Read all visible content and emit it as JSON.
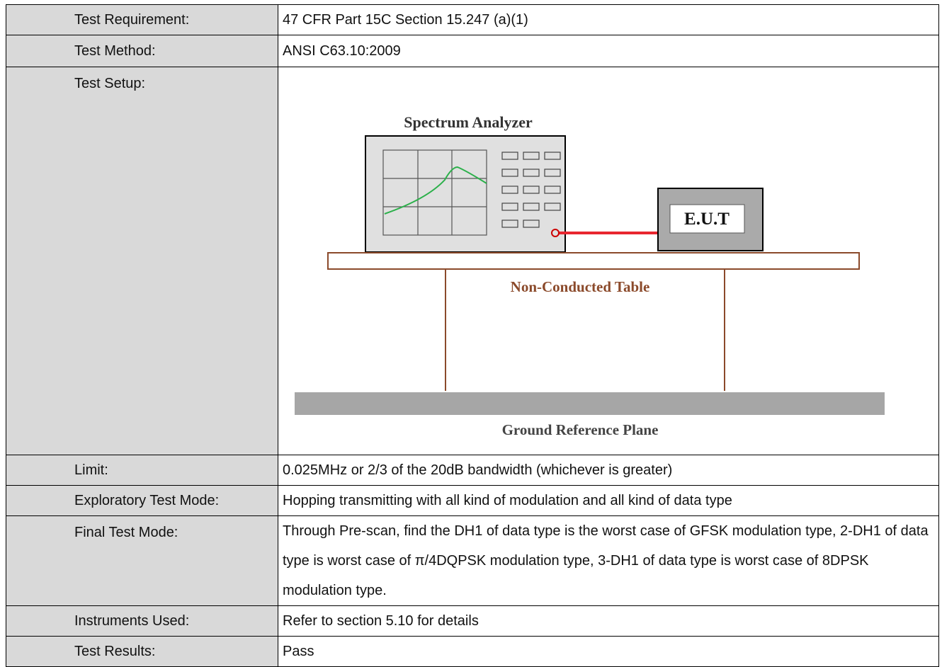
{
  "table": {
    "rows": [
      [
        "Test Requirement:",
        "47 CFR Part 15C Section 15.247 (a)(1)"
      ],
      [
        "Test Method:",
        "ANSI C63.10:2009"
      ],
      [
        "Test Setup:",
        ""
      ],
      [
        "Limit:",
        "0.025MHz or 2/3 of the 20dB bandwidth (whichever is greater)"
      ],
      [
        "Exploratory Test Mode:",
        "Hopping transmitting with all kind of modulation and all kind of data type"
      ],
      [
        "Final Test Mode:",
        "Through Pre-scan, find the DH1 of data type is the worst case of GFSK modulation type, 2-DH1 of data type is worst case of π/4DQPSK modulation type, 3-DH1 of data type is worst case of 8DPSK modulation type."
      ],
      [
        "Instruments Used:",
        "Refer to section 5.10 for details"
      ],
      [
        "Test Results:",
        "Pass"
      ]
    ]
  },
  "diagram": {
    "analyzer": "Spectrum Analyzer",
    "eut": "E.U.T",
    "table": "Non-Conducted Table",
    "ground": "Ground Reference Plane"
  }
}
